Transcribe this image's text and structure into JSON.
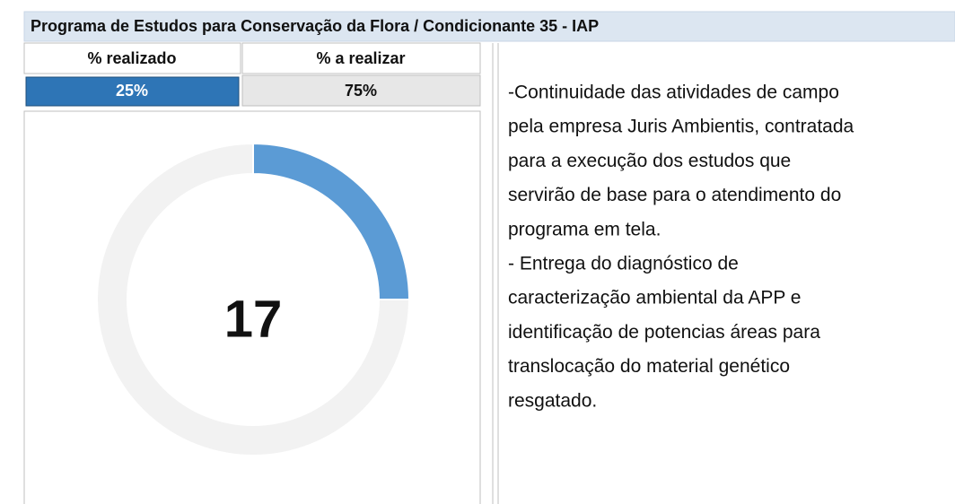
{
  "header": {
    "title": "Programa de Estudos para Conservação da Flora / Condicionante 35 - IAP"
  },
  "chart_data": {
    "type": "pie",
    "categories": [
      "% realizado",
      "% a realizar"
    ],
    "values": [
      25,
      75
    ],
    "value_labels": [
      "25%",
      "75%"
    ],
    "colors": [
      "#5b9bd5",
      "#f2f2f2"
    ],
    "center_value": 17
  },
  "notes": {
    "lines": [
      "-Continuidade das atividades de campo",
      "pela empresa Juris Ambientis, contratada",
      "para a execução dos estudos que",
      "servirão de base para o atendimento do",
      "programa em tela.",
      "- Entrega do diagnóstico de",
      "caracterização ambiental da APP e",
      "identificação de potencias áreas para",
      "translocação do material genético",
      "resgatado."
    ]
  }
}
